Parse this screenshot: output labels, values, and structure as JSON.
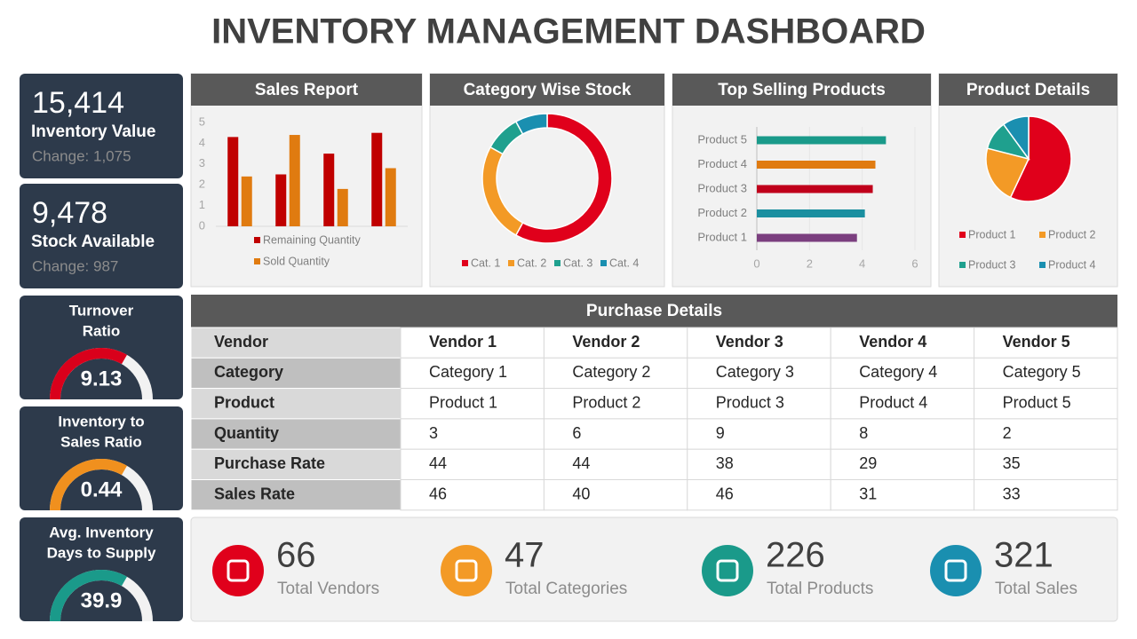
{
  "title": "INVENTORY MANAGEMENT DASHBOARD",
  "kpis": [
    {
      "value": "15,414",
      "label": "Inventory Value",
      "change": "Change: 1,075"
    },
    {
      "value": "9,478",
      "label": "Stock Available",
      "change": "Change: 987"
    }
  ],
  "gauges": [
    {
      "title": [
        "Turnover",
        "Ratio"
      ],
      "value": "9.13",
      "color": "#d9001b"
    },
    {
      "title": [
        "Inventory to",
        "Sales Ratio"
      ],
      "value": "0.44",
      "color": "#f0901e"
    },
    {
      "title": [
        "Avg. Inventory",
        "Days to Supply"
      ],
      "value": "39.9",
      "color": "#1a9a8a"
    }
  ],
  "chart_data": [
    {
      "type": "bar",
      "title": "Sales Report",
      "categories": [
        null,
        null,
        null,
        null
      ],
      "series": [
        {
          "name": "Remaining Quantity",
          "color": "#c00000",
          "values": [
            4.3,
            2.5,
            3.5,
            4.5
          ]
        },
        {
          "name": "Sold Quantity",
          "color": "#e07b10",
          "values": [
            2.4,
            4.4,
            1.8,
            2.8
          ]
        }
      ],
      "ylim": [
        0,
        5
      ],
      "yticks": [
        0,
        1,
        2,
        3,
        4,
        5
      ]
    },
    {
      "type": "donut",
      "title": "Category Wise Stock",
      "categories": [
        "Cat. 1",
        "Cat. 2",
        "Cat. 3",
        "Cat. 4"
      ],
      "values": [
        58,
        25,
        9,
        8
      ],
      "colors": [
        "#e0001b",
        "#f39a26",
        "#1fa08e",
        "#1a8fb0"
      ]
    },
    {
      "type": "barh",
      "title": "Top Selling Products",
      "categories": [
        "Product 1",
        "Product 2",
        "Product 3",
        "Product 4",
        "Product 5"
      ],
      "values": [
        3.8,
        4.1,
        4.4,
        4.5,
        4.9
      ],
      "colors": [
        "#7b3f7f",
        "#1b8fa0",
        "#c0001b",
        "#e07b10",
        "#1a9a8a"
      ],
      "xlim": [
        0,
        6
      ],
      "xticks": [
        0,
        2,
        4,
        6
      ],
      "grid": true
    },
    {
      "type": "pie",
      "title": "Product Details",
      "categories": [
        "Product 1",
        "Product 2",
        "Product 3",
        "Product 4"
      ],
      "values": [
        57,
        22,
        11,
        10
      ],
      "colors": [
        "#e0001b",
        "#f39a26",
        "#1fa08e",
        "#1a8fb0"
      ]
    }
  ],
  "table": {
    "title": "Purchase Details",
    "rows": [
      [
        "Vendor",
        "Vendor 1",
        "Vendor 2",
        "Vendor 3",
        "Vendor 4",
        "Vendor 5"
      ],
      [
        "Category",
        "Category 1",
        "Category 2",
        "Category 3",
        "Category 4",
        "Category 5"
      ],
      [
        "Product",
        "Product 1",
        "Product 2",
        "Product 3",
        "Product 4",
        "Product 5"
      ],
      [
        "Quantity",
        3,
        6,
        9,
        8,
        2
      ],
      [
        "Purchase Rate",
        44,
        44,
        38,
        29,
        35
      ],
      [
        "Sales Rate",
        46,
        40,
        46,
        31,
        33
      ]
    ]
  },
  "stats": [
    {
      "value": "66",
      "label": "Total Vendors",
      "color": "#e0001b"
    },
    {
      "value": "47",
      "label": "Total Categories",
      "color": "#f39a26"
    },
    {
      "value": "226",
      "label": "Total Products",
      "color": "#1a9a8a"
    },
    {
      "value": "321",
      "label": "Total Sales",
      "color": "#1a8fb0"
    }
  ]
}
